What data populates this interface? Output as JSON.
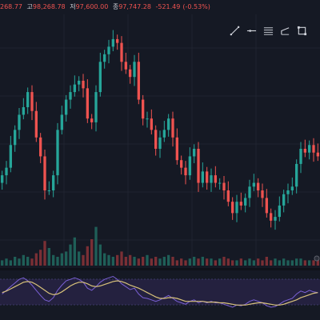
{
  "header": {
    "open_fragment": "268.77",
    "high_label": "고",
    "high_value": "98,268.78",
    "low_label": "저",
    "low_value": "97,600.00",
    "close_label": "종",
    "close_value": "97,747.28",
    "change_value": "-521.49",
    "change_pct": "(-0.53%)"
  },
  "toolbar": {
    "tools": [
      {
        "name": "trend-line-tool",
        "icon": "diagonal-line-icon"
      },
      {
        "name": "horizontal-ray-tool",
        "icon": "horizontal-ray-icon"
      },
      {
        "name": "fib-retracement-tool",
        "icon": "fib-lines-icon"
      },
      {
        "name": "brush-tool",
        "icon": "brush-icon"
      },
      {
        "name": "rectangle-tool",
        "icon": "rectangle-icon"
      }
    ]
  },
  "colors": {
    "background": "#151924",
    "up": "#26a69a",
    "down": "#ef5350",
    "volume_up": "#1f5f58",
    "volume_down": "#7a2f35",
    "grid": "#20242f",
    "oscillator_band": "#24213f",
    "oscillator_fast": "#7b61d6",
    "oscillator_slow": "#d8c27a"
  },
  "chart_data": {
    "type": "candlestick",
    "closes": [
      30,
      32,
      38,
      42,
      46,
      48,
      52,
      47,
      40,
      35,
      26,
      26,
      30,
      42,
      46,
      50,
      52,
      54,
      55,
      53,
      45,
      44,
      52,
      60,
      62,
      64,
      66,
      65,
      60,
      58,
      56,
      60,
      50,
      45,
      45,
      42,
      37,
      40,
      42,
      45,
      40,
      34,
      32,
      30,
      35,
      37,
      28,
      31,
      28,
      30,
      28,
      28,
      26,
      23,
      20,
      23,
      22,
      24,
      27,
      28,
      26,
      24,
      20,
      18,
      19,
      22,
      25,
      26,
      27,
      33,
      37,
      36,
      38,
      36,
      35
    ],
    "volume": [
      3,
      4,
      3,
      5,
      4,
      6,
      5,
      4,
      7,
      9,
      14,
      10,
      6,
      5,
      7,
      8,
      12,
      16,
      8,
      6,
      11,
      15,
      22,
      12,
      7,
      6,
      5,
      6,
      8,
      5,
      6,
      5,
      4,
      5,
      6,
      4,
      5,
      4,
      5,
      6,
      5,
      3,
      4,
      3,
      4,
      5,
      4,
      5,
      4,
      4,
      3,
      4,
      5,
      4,
      3,
      3,
      4,
      3,
      4,
      3,
      4,
      3,
      5,
      3,
      4,
      3,
      4,
      3,
      3,
      4,
      4,
      3,
      3,
      3,
      4
    ],
    "oscillator_fast": [
      50,
      55,
      60,
      65,
      70,
      72,
      68,
      62,
      55,
      48,
      42,
      40,
      45,
      55,
      62,
      68,
      70,
      72,
      70,
      66,
      58,
      55,
      60,
      66,
      70,
      72,
      74,
      70,
      64,
      60,
      56,
      58,
      50,
      45,
      44,
      42,
      40,
      42,
      45,
      48,
      44,
      40,
      38,
      36,
      40,
      42,
      38,
      40,
      38,
      40,
      38,
      38,
      36,
      34,
      32,
      35,
      34,
      36,
      40,
      42,
      40,
      38,
      34,
      32,
      33,
      36,
      40,
      42,
      44,
      50,
      54,
      52,
      55,
      53,
      52
    ],
    "oscillator_slow": [
      52,
      54,
      57,
      60,
      63,
      66,
      67,
      66,
      63,
      59,
      55,
      51,
      49,
      50,
      53,
      57,
      61,
      64,
      66,
      66,
      64,
      61,
      60,
      61,
      63,
      65,
      67,
      68,
      67,
      65,
      62,
      60,
      58,
      55,
      52,
      49,
      46,
      44,
      44,
      45,
      45,
      44,
      42,
      40,
      40,
      40,
      40,
      40,
      39,
      39,
      39,
      38,
      38,
      37,
      36,
      35,
      35,
      35,
      36,
      37,
      38,
      38,
      37,
      36,
      35,
      35,
      36,
      38,
      40,
      42,
      45,
      47,
      49,
      51,
      52
    ]
  }
}
